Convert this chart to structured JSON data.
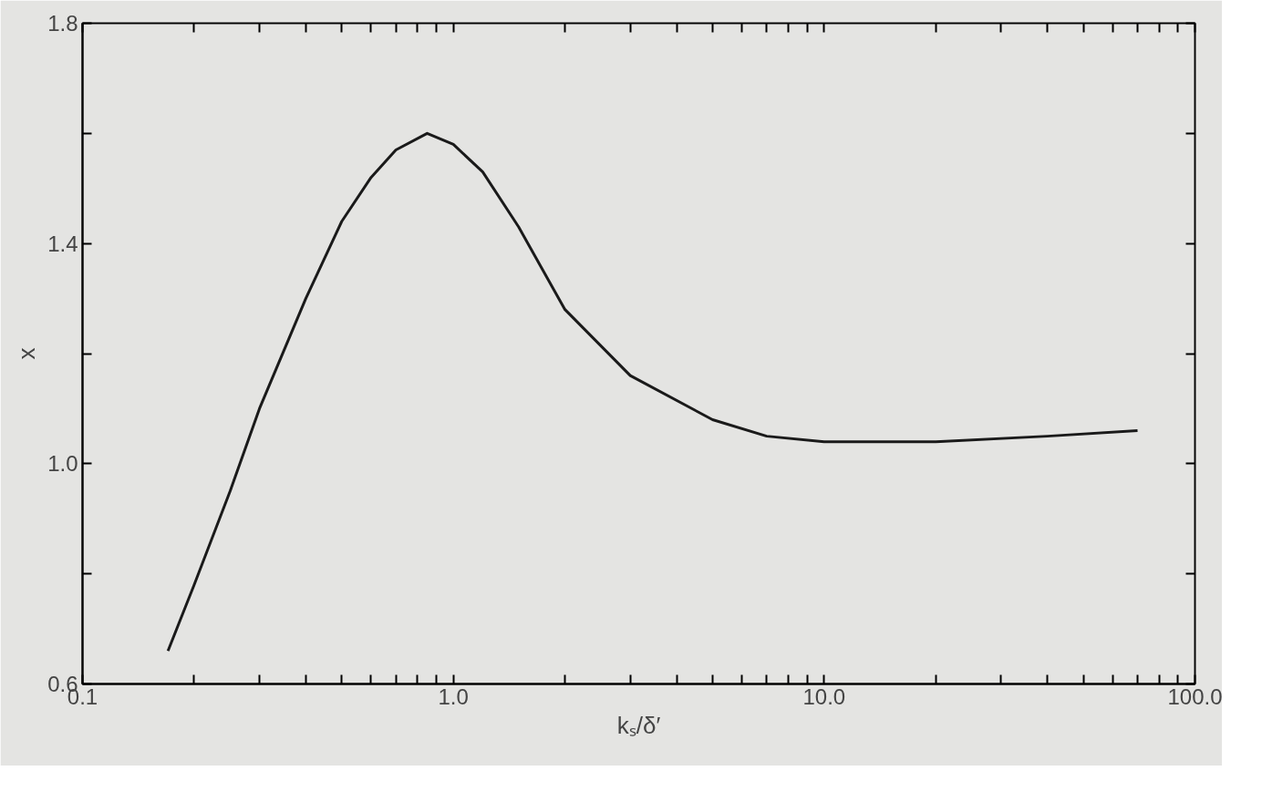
{
  "chart_data": {
    "type": "line",
    "xlabel": "kₛ/δ′",
    "ylabel": "x",
    "log": "x",
    "xlim": [
      0.1,
      100
    ],
    "ylim": [
      0.6,
      1.8
    ],
    "xticks": [
      {
        "value": 0.1,
        "label": "0.1"
      },
      {
        "value": 0.2,
        "label": null
      },
      {
        "value": 0.3,
        "label": null
      },
      {
        "value": 0.4,
        "label": null
      },
      {
        "value": 0.5,
        "label": null
      },
      {
        "value": 0.6,
        "label": null
      },
      {
        "value": 0.7,
        "label": null
      },
      {
        "value": 0.8,
        "label": null
      },
      {
        "value": 0.9,
        "label": null
      },
      {
        "value": 1,
        "label": "1.0"
      },
      {
        "value": 2,
        "label": null
      },
      {
        "value": 3,
        "label": null
      },
      {
        "value": 4,
        "label": null
      },
      {
        "value": 5,
        "label": null
      },
      {
        "value": 6,
        "label": null
      },
      {
        "value": 7,
        "label": null
      },
      {
        "value": 8,
        "label": null
      },
      {
        "value": 9,
        "label": null
      },
      {
        "value": 10,
        "label": "10.0"
      },
      {
        "value": 20,
        "label": null
      },
      {
        "value": 30,
        "label": null
      },
      {
        "value": 40,
        "label": null
      },
      {
        "value": 50,
        "label": null
      },
      {
        "value": 60,
        "label": null
      },
      {
        "value": 70,
        "label": null
      },
      {
        "value": 80,
        "label": null
      },
      {
        "value": 90,
        "label": null
      },
      {
        "value": 100,
        "label": "100.0"
      }
    ],
    "yticks": [
      {
        "value": 0.6,
        "label": "0.6"
      },
      {
        "value": 0.8,
        "label": null
      },
      {
        "value": 1.0,
        "label": "1.0"
      },
      {
        "value": 1.2,
        "label": null
      },
      {
        "value": 1.4,
        "label": "1.4"
      },
      {
        "value": 1.6,
        "label": null
      },
      {
        "value": 1.8,
        "label": "1.8"
      }
    ],
    "marker": "none",
    "line_style": "solid",
    "series": [
      {
        "color": "#1a1a1a",
        "x": [
          0.17,
          0.2,
          0.25,
          0.3,
          0.4,
          0.5,
          0.6,
          0.7,
          0.85,
          1.0,
          1.2,
          1.5,
          2.0,
          3.0,
          5.0,
          7.0,
          10,
          20,
          40,
          70
        ],
        "values": [
          0.66,
          0.78,
          0.95,
          1.1,
          1.3,
          1.44,
          1.52,
          1.57,
          1.6,
          1.58,
          1.53,
          1.43,
          1.28,
          1.16,
          1.08,
          1.05,
          1.04,
          1.04,
          1.05,
          1.06
        ]
      }
    ]
  }
}
